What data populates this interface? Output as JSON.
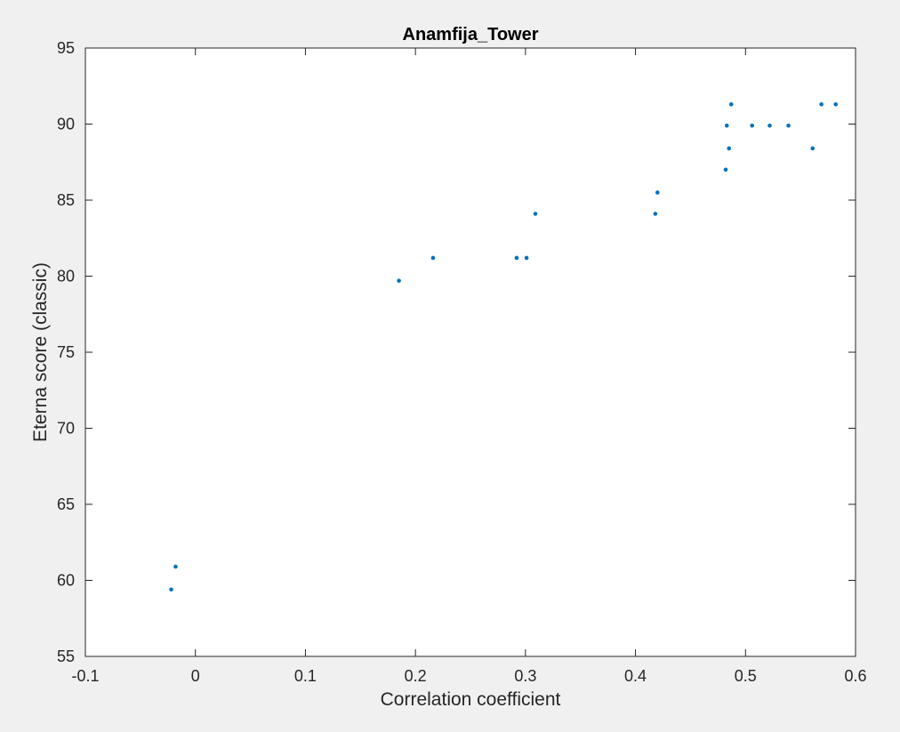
{
  "window": {
    "background": "#f0f0f0"
  },
  "chart_data": {
    "type": "scatter",
    "title": "Anamfija_Tower",
    "xlabel": "Correlation coefficient",
    "ylabel": "Eterna score (classic)",
    "xlim": [
      -0.1,
      0.6
    ],
    "ylim": [
      55,
      95
    ],
    "xticks": [
      -0.1,
      0,
      0.1,
      0.2,
      0.3,
      0.4,
      0.5,
      0.6
    ],
    "xtick_labels": [
      "-0.1",
      "0",
      "0.1",
      "0.2",
      "0.3",
      "0.4",
      "0.5",
      "0.6"
    ],
    "yticks": [
      55,
      60,
      65,
      70,
      75,
      80,
      85,
      90,
      95
    ],
    "ytick_labels": [
      "55",
      "60",
      "65",
      "70",
      "75",
      "80",
      "85",
      "90",
      "95"
    ],
    "grid": false,
    "legend": false,
    "marker_color": "#0072bd",
    "series": [
      {
        "points": [
          {
            "x": -0.022,
            "y": 59.4
          },
          {
            "x": -0.018,
            "y": 60.9
          },
          {
            "x": 0.185,
            "y": 79.7
          },
          {
            "x": 0.216,
            "y": 81.2
          },
          {
            "x": 0.292,
            "y": 81.2
          },
          {
            "x": 0.301,
            "y": 81.2
          },
          {
            "x": 0.309,
            "y": 84.1
          },
          {
            "x": 0.418,
            "y": 84.1
          },
          {
            "x": 0.42,
            "y": 85.5
          },
          {
            "x": 0.482,
            "y": 87.0
          },
          {
            "x": 0.483,
            "y": 89.9
          },
          {
            "x": 0.485,
            "y": 88.4
          },
          {
            "x": 0.487,
            "y": 91.3
          },
          {
            "x": 0.506,
            "y": 89.9
          },
          {
            "x": 0.522,
            "y": 89.9
          },
          {
            "x": 0.539,
            "y": 89.9
          },
          {
            "x": 0.561,
            "y": 88.4
          },
          {
            "x": 0.569,
            "y": 91.3
          },
          {
            "x": 0.582,
            "y": 91.3
          }
        ]
      }
    ]
  }
}
